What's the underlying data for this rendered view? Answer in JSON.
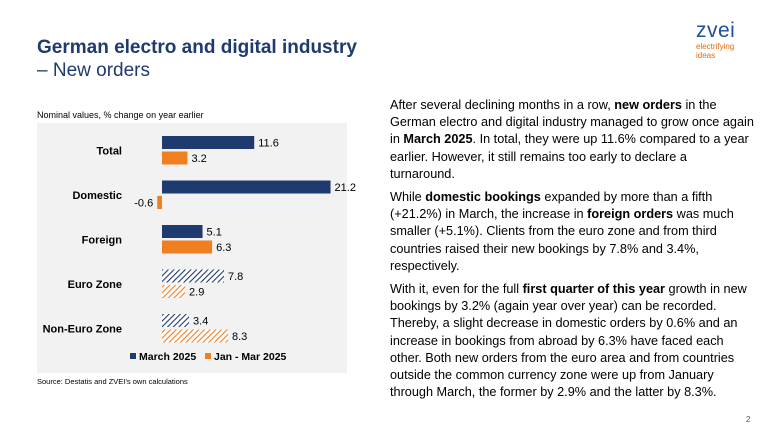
{
  "slide": {
    "title_line1": "German electro and digital industry",
    "title_line2": "– New orders",
    "page_number": "2"
  },
  "logo": {
    "word": "zvei",
    "tagline1": "electrifying",
    "tagline2": "ideas"
  },
  "colors": {
    "title": "#1f3a6e",
    "series_march": "#1f3a6e",
    "series_q1": "#f07f22",
    "plot_bg": "#f2f2f2"
  },
  "chart_data": {
    "type": "bar",
    "orientation": "horizontal",
    "subtitle": "Nominal values, % change on year earlier",
    "categories": [
      "Total",
      "Domestic",
      "Foreign",
      "Euro Zone",
      "Non-Euro Zone"
    ],
    "series": [
      {
        "name": "March 2025",
        "values": [
          11.6,
          21.2,
          5.1,
          7.8,
          3.4
        ],
        "labels": [
          "11.6",
          "21.2",
          "5.1",
          "7.8",
          "3.4"
        ]
      },
      {
        "name": "Jan - Mar 2025",
        "values": [
          3.2,
          -0.6,
          6.3,
          2.9,
          8.3
        ],
        "labels": [
          "3.2",
          "-0.6",
          "6.3",
          "2.9",
          "8.3"
        ]
      }
    ],
    "hatched_categories": [
      "Euro Zone",
      "Non-Euro Zone"
    ],
    "xlim": [
      -1,
      23
    ],
    "grid": false,
    "legend_position": "bottom",
    "source": "Source: Destatis and ZVEI’s own calculations"
  },
  "text": {
    "p1": [
      {
        "t": "After several declining months in a row, "
      },
      {
        "t": "new orders",
        "b": true
      },
      {
        "t": " in the German electro and digital industry managed to grow once again in "
      },
      {
        "t": "March 2025",
        "b": true
      },
      {
        "t": ". In total, they were up 11.6% compared to a year earlier. However, it still remains too early to declare a turnaround."
      }
    ],
    "p2": [
      {
        "t": "While "
      },
      {
        "t": "domestic bookings",
        "b": true
      },
      {
        "t": " expanded by more than a fifth (+21.2%) in March, the increase in "
      },
      {
        "t": "foreign orders",
        "b": true
      },
      {
        "t": " was much smaller (+5.1%). Clients from the euro zone and from third countries raised their new bookings by 7.8% and 3.4%, respectively."
      }
    ],
    "p3": [
      {
        "t": "With it, even for the full "
      },
      {
        "t": "first quarter of this year",
        "b": true
      },
      {
        "t": " growth in new bookings by 3.2% (again year over year) can be recorded. Thereby, a slight decrease in domestic orders by 0.6% and an increase in bookings from abroad by 6.3% have faced each other. Both new orders from the euro area and from countries outside the common currency zone were up from January through March, the former by 2.9% and the latter by 8.3%."
      }
    ]
  }
}
